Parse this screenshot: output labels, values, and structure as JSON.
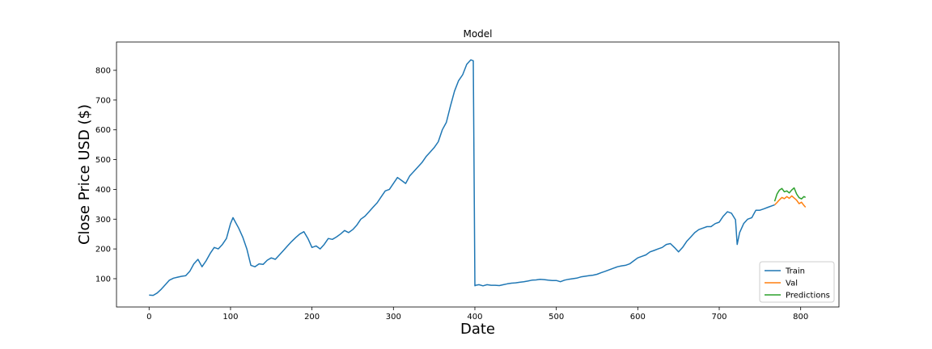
{
  "chart_data": {
    "type": "line",
    "title": "Model",
    "xlabel": "Date",
    "ylabel": "Close Price USD ($)",
    "xlim": [
      -40,
      847
    ],
    "ylim": [
      5,
      895
    ],
    "xticks": [
      0,
      100,
      200,
      300,
      400,
      500,
      600,
      700,
      800
    ],
    "yticks": [
      100,
      200,
      300,
      400,
      500,
      600,
      700,
      800
    ],
    "grid": false,
    "legend_position": "lower-right",
    "series": [
      {
        "name": "Train",
        "color": "#1f77b4",
        "x": [
          0,
          5,
          10,
          15,
          20,
          25,
          30,
          35,
          40,
          45,
          50,
          55,
          60,
          65,
          70,
          75,
          80,
          85,
          90,
          95,
          100,
          103,
          106,
          110,
          115,
          120,
          125,
          130,
          135,
          140,
          145,
          150,
          155,
          160,
          165,
          170,
          175,
          180,
          185,
          190,
          195,
          200,
          205,
          210,
          215,
          220,
          225,
          230,
          235,
          240,
          245,
          250,
          255,
          260,
          265,
          270,
          275,
          280,
          285,
          290,
          295,
          300,
          305,
          310,
          315,
          320,
          325,
          330,
          335,
          340,
          345,
          350,
          355,
          360,
          365,
          370,
          375,
          380,
          385,
          390,
          395,
          398,
          400,
          401,
          405,
          410,
          415,
          420,
          425,
          430,
          435,
          440,
          445,
          450,
          455,
          460,
          465,
          470,
          475,
          480,
          485,
          490,
          495,
          500,
          505,
          510,
          515,
          520,
          525,
          530,
          535,
          540,
          545,
          550,
          555,
          560,
          565,
          570,
          575,
          580,
          585,
          590,
          595,
          600,
          605,
          610,
          615,
          620,
          625,
          630,
          635,
          640,
          645,
          650,
          655,
          660,
          665,
          670,
          675,
          680,
          685,
          690,
          695,
          700,
          705,
          710,
          715,
          720,
          722,
          725,
          730,
          735,
          740,
          745,
          750,
          755,
          760,
          765,
          768
        ],
        "values": [
          45,
          44,
          52,
          65,
          80,
          95,
          102,
          105,
          108,
          110,
          125,
          150,
          165,
          140,
          160,
          185,
          205,
          200,
          215,
          235,
          285,
          305,
          290,
          270,
          240,
          200,
          145,
          140,
          150,
          148,
          162,
          170,
          165,
          180,
          195,
          210,
          225,
          238,
          250,
          258,
          235,
          205,
          210,
          200,
          215,
          235,
          232,
          240,
          250,
          262,
          255,
          265,
          280,
          300,
          310,
          325,
          340,
          355,
          375,
          395,
          400,
          420,
          440,
          430,
          420,
          445,
          460,
          475,
          490,
          510,
          525,
          540,
          560,
          600,
          625,
          680,
          730,
          765,
          785,
          820,
          835,
          832,
          76,
          78,
          80,
          76,
          80,
          78,
          78,
          77,
          80,
          83,
          85,
          86,
          88,
          90,
          92,
          95,
          96,
          98,
          97,
          95,
          94,
          94,
          90,
          95,
          98,
          100,
          102,
          106,
          108,
          110,
          112,
          115,
          120,
          125,
          130,
          135,
          140,
          143,
          145,
          150,
          160,
          170,
          175,
          180,
          190,
          195,
          200,
          205,
          215,
          218,
          205,
          190,
          205,
          225,
          240,
          255,
          265,
          270,
          275,
          275,
          285,
          290,
          310,
          325,
          320,
          298,
          215,
          255,
          285,
          300,
          305,
          330,
          330,
          335,
          340,
          345,
          348
        ]
      },
      {
        "name": "Val",
        "color": "#ff7f0e",
        "x": [
          768,
          771,
          774,
          777,
          780,
          783,
          786,
          789,
          792,
          795,
          798,
          801,
          804,
          806
        ],
        "values": [
          348,
          356,
          365,
          373,
          369,
          376,
          370,
          378,
          371,
          364,
          352,
          357,
          346,
          340
        ]
      },
      {
        "name": "Predictions",
        "color": "#2ca02c",
        "x": [
          768,
          771,
          774,
          777,
          780,
          783,
          786,
          789,
          792,
          795,
          798,
          801,
          804,
          806
        ],
        "values": [
          360,
          385,
          398,
          403,
          392,
          395,
          388,
          398,
          405,
          385,
          372,
          368,
          376,
          373
        ]
      }
    ]
  }
}
